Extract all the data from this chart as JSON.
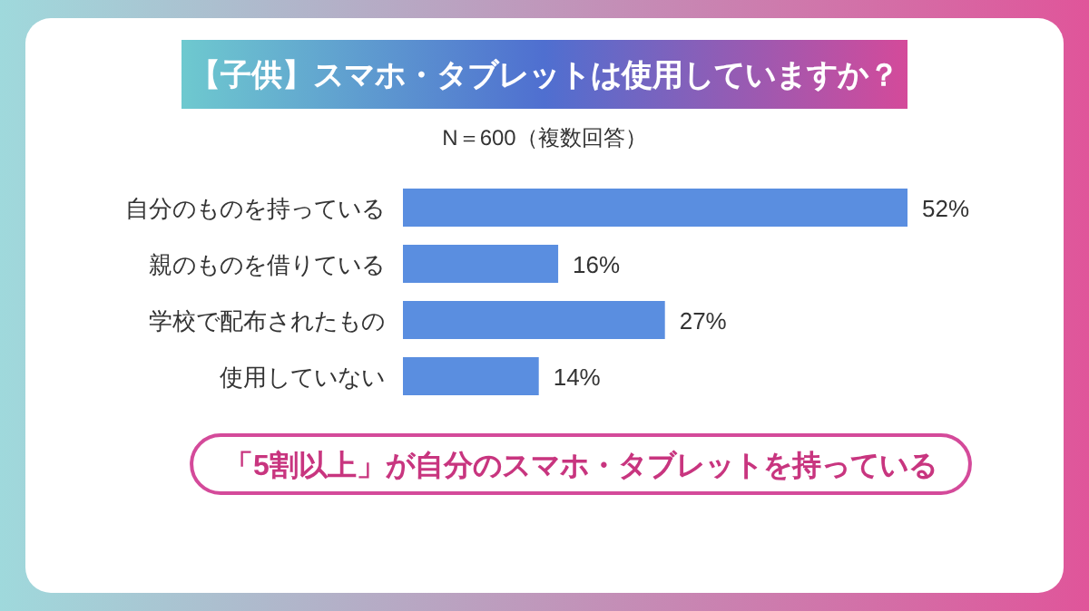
{
  "chart_data": {
    "type": "bar",
    "orientation": "horizontal",
    "title": "【子供】スマホ・タブレットは使用していますか？",
    "subtitle": "N＝600（複数回答）",
    "categories": [
      "自分のものを持っている",
      "親のものを借りている",
      "学校で配布されたもの",
      "使用していない"
    ],
    "values": [
      52,
      16,
      27,
      14
    ],
    "value_labels": [
      "52%",
      "16%",
      "27%",
      "14%"
    ],
    "color": "#5a8ee0",
    "annotations": [
      "「5割以上」が自分のスマホ・タブレットを持っている"
    ]
  }
}
